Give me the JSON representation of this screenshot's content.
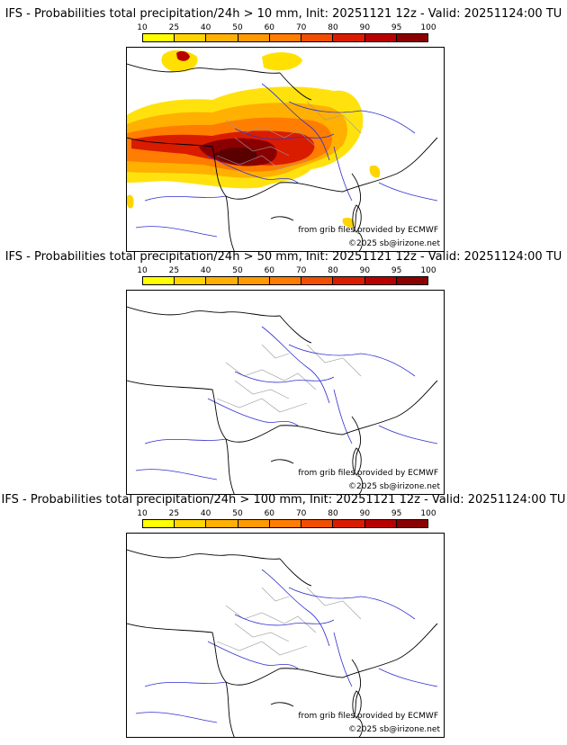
{
  "colorbar": {
    "ticks": [
      "10",
      "25",
      "40",
      "50",
      "60",
      "70",
      "80",
      "90",
      "95",
      "100"
    ],
    "colors": [
      "#ffff00",
      "#ffd400",
      "#ffb000",
      "#ff9a00",
      "#ff7d00",
      "#f04e00",
      "#d91c00",
      "#b80000",
      "#8a0000",
      "#5a0000"
    ]
  },
  "credits": {
    "source": "from grib files provided by ECMWF",
    "copyright": "©2025 sb@irizone.net"
  },
  "panels": [
    {
      "title": "IFS - Probabilities total precipitation/24h > 10 mm, Init: 20251121 12z - Valid: 20251124:00 TU",
      "threshold_mm": 10
    },
    {
      "title": "IFS - Probabilities total precipitation/24h > 50 mm, Init: 20251121 12z - Valid: 20251124:00 TU",
      "threshold_mm": 50
    },
    {
      "title": "IFS - Probabilities total precipitation/24h > 100 mm, Init: 20251121 12z - Valid: 20251124:00 TU",
      "threshold_mm": 100
    }
  ]
}
